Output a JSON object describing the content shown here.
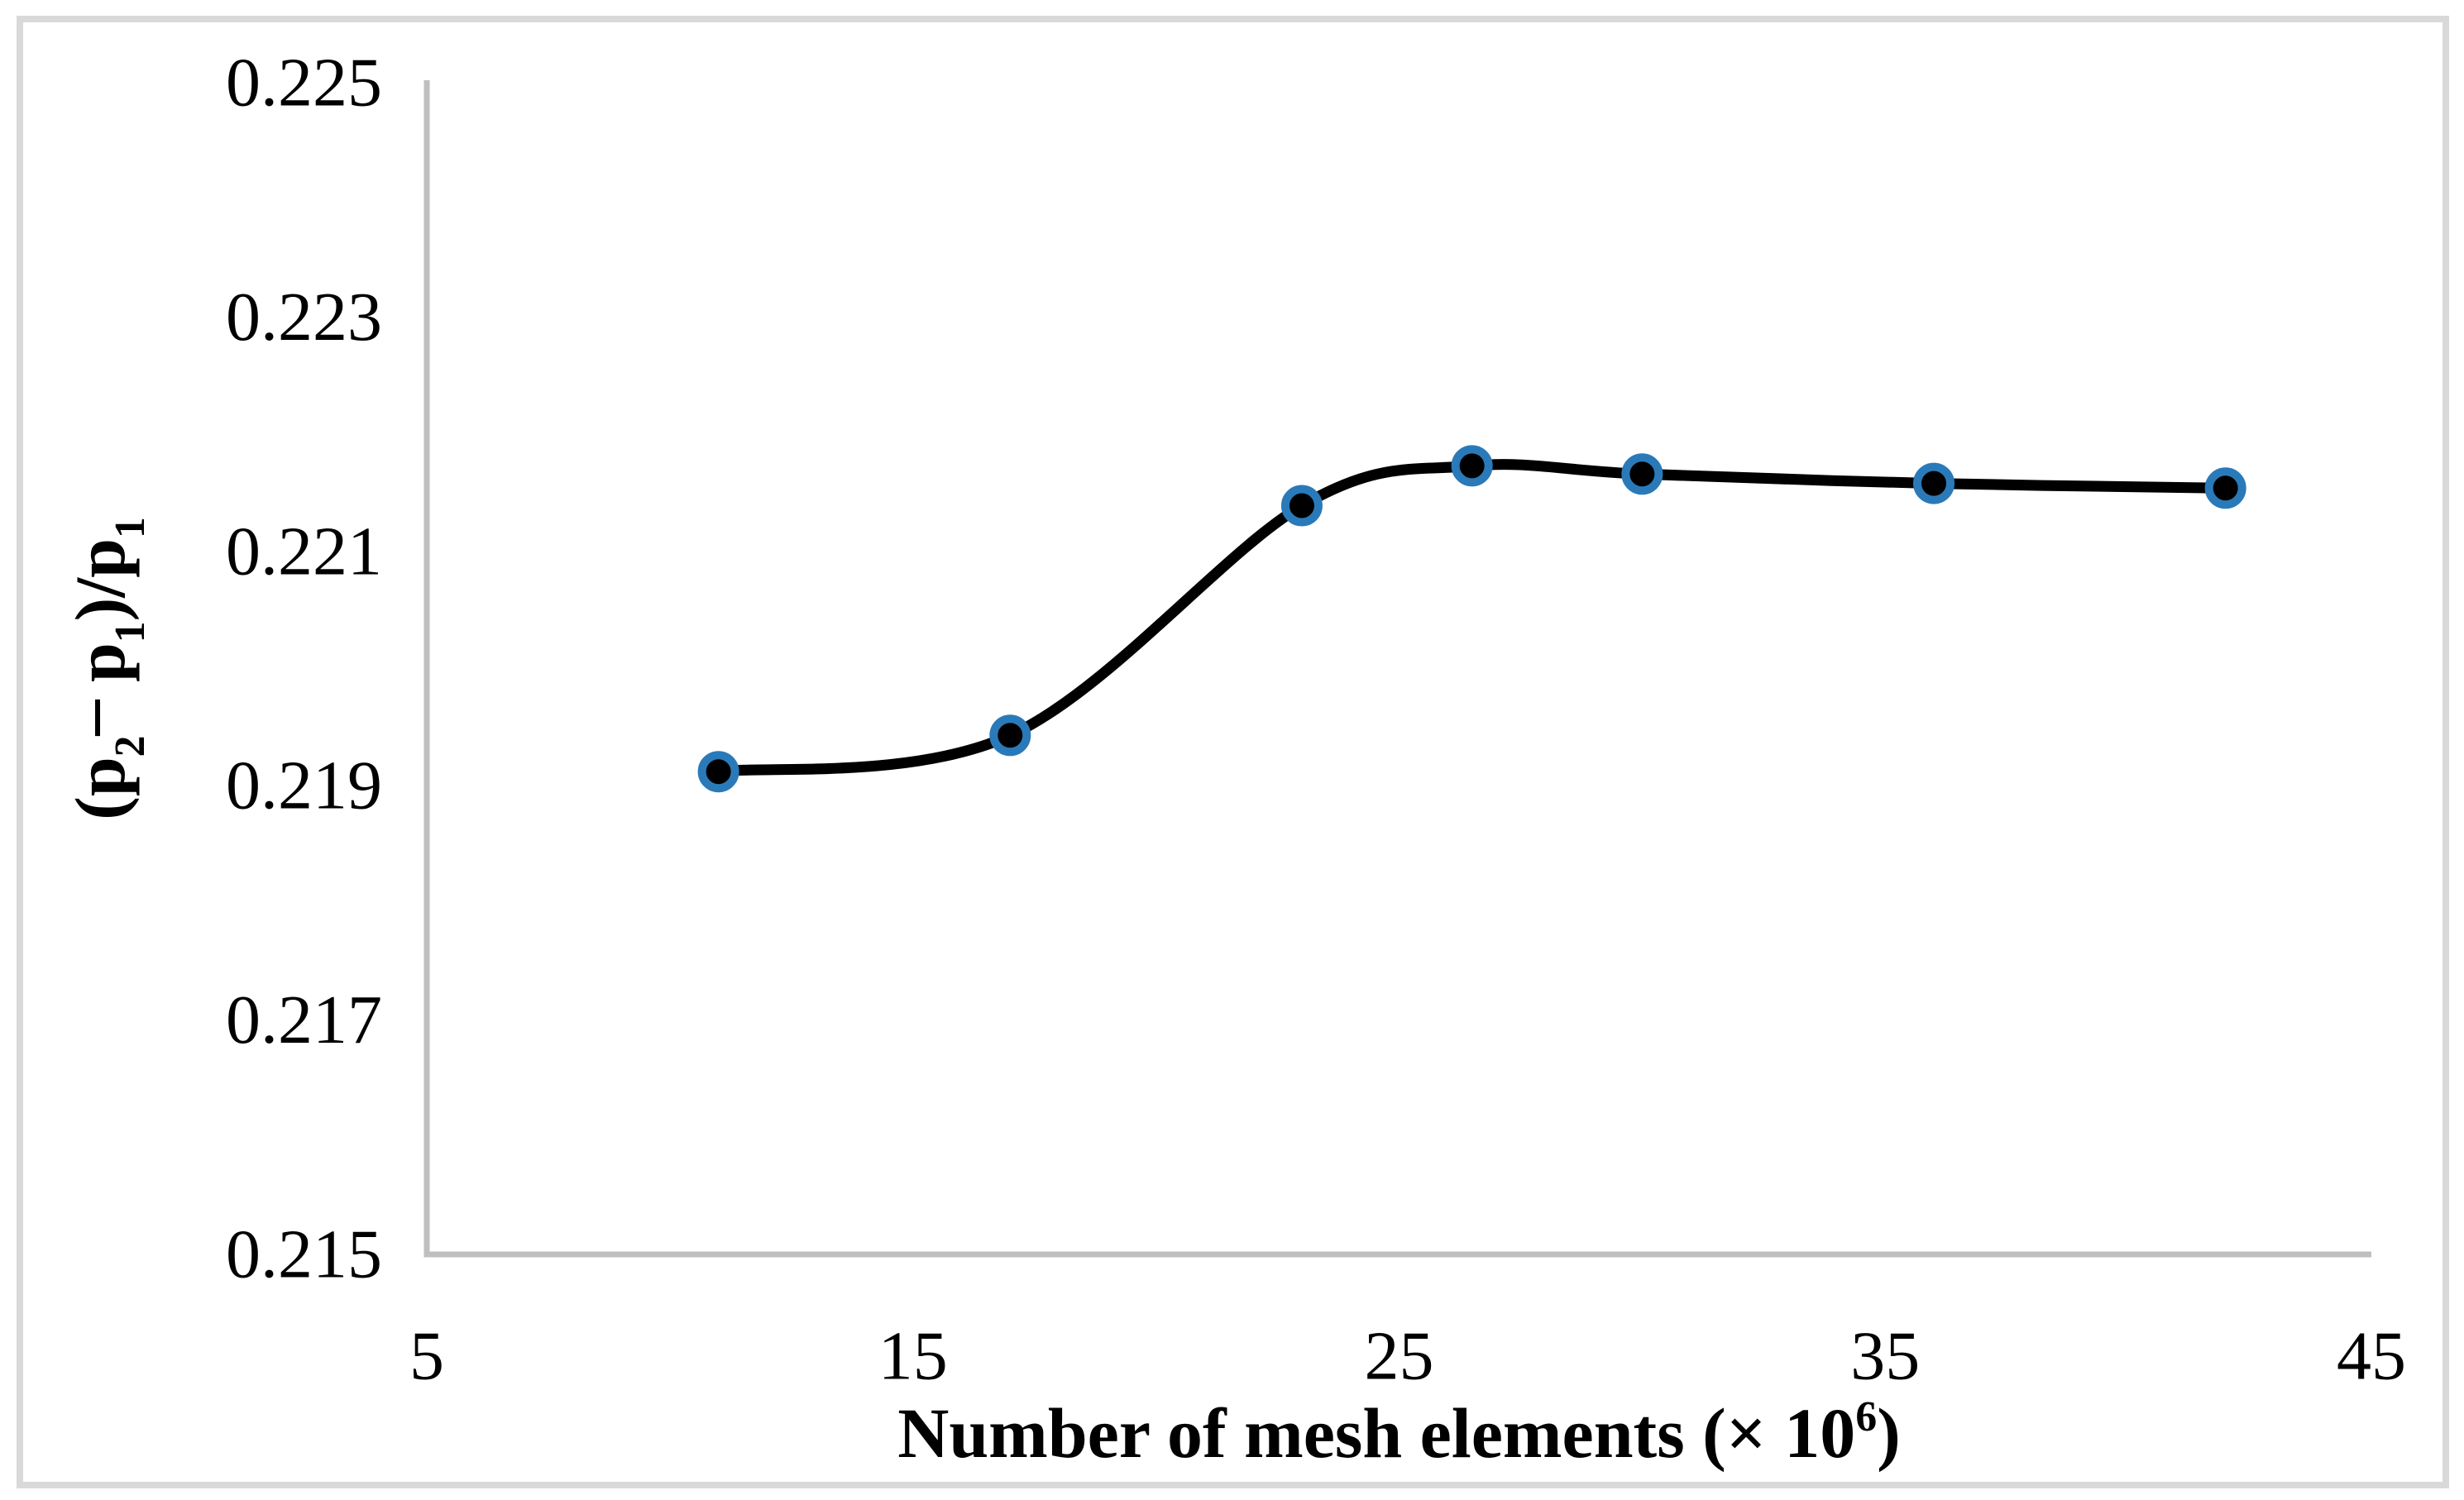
{
  "figure": {
    "background": "#FFFFFF",
    "frame_color": "#D9D9D9",
    "axis_color": "#BFBFBF",
    "text_color": "#000000"
  },
  "chart_data": {
    "type": "line",
    "title": "",
    "xlabel": "Number of mesh elements (× 10^6)",
    "ylabel": "(p2 – p1)/p1",
    "xlabel_parts": [
      {
        "t": "Number of mesh elements (× 10"
      },
      {
        "t": "6",
        "style": "sup"
      },
      {
        "t": ")"
      }
    ],
    "ylabel_parts": [
      {
        "t": "(p"
      },
      {
        "t": "2",
        "style": "sub"
      },
      {
        "t": "– ",
        "style": "raise"
      },
      {
        "t": "p"
      },
      {
        "t": "1",
        "style": "sub"
      },
      {
        "t": ")/p"
      },
      {
        "t": "1",
        "style": "sub"
      }
    ],
    "x": [
      11,
      17,
      23,
      26.5,
      30,
      36,
      42
    ],
    "y": [
      0.21912,
      0.21943,
      0.22139,
      0.22173,
      0.22166,
      0.22158,
      0.22154
    ],
    "xlim": [
      5,
      45
    ],
    "ylim": [
      0.215,
      0.225
    ],
    "x_ticks": [
      {
        "value": 5,
        "label": "5"
      },
      {
        "value": 15,
        "label": "15"
      },
      {
        "value": 25,
        "label": "25"
      },
      {
        "value": 35,
        "label": "35"
      },
      {
        "value": 45,
        "label": "45"
      }
    ],
    "y_ticks": [
      {
        "value": 0.225,
        "label": "0.225"
      },
      {
        "value": 0.223,
        "label": "0.223"
      },
      {
        "value": 0.221,
        "label": "0.221"
      },
      {
        "value": 0.219,
        "label": "0.219"
      },
      {
        "value": 0.217,
        "label": "0.217"
      },
      {
        "value": 0.215,
        "label": "0.215"
      }
    ],
    "grid": false,
    "legend": false,
    "smooth": true,
    "line_color": "#000000",
    "line_width": 13,
    "marker_fill": "#000000",
    "marker_ring_color": "#2A7AB9"
  }
}
